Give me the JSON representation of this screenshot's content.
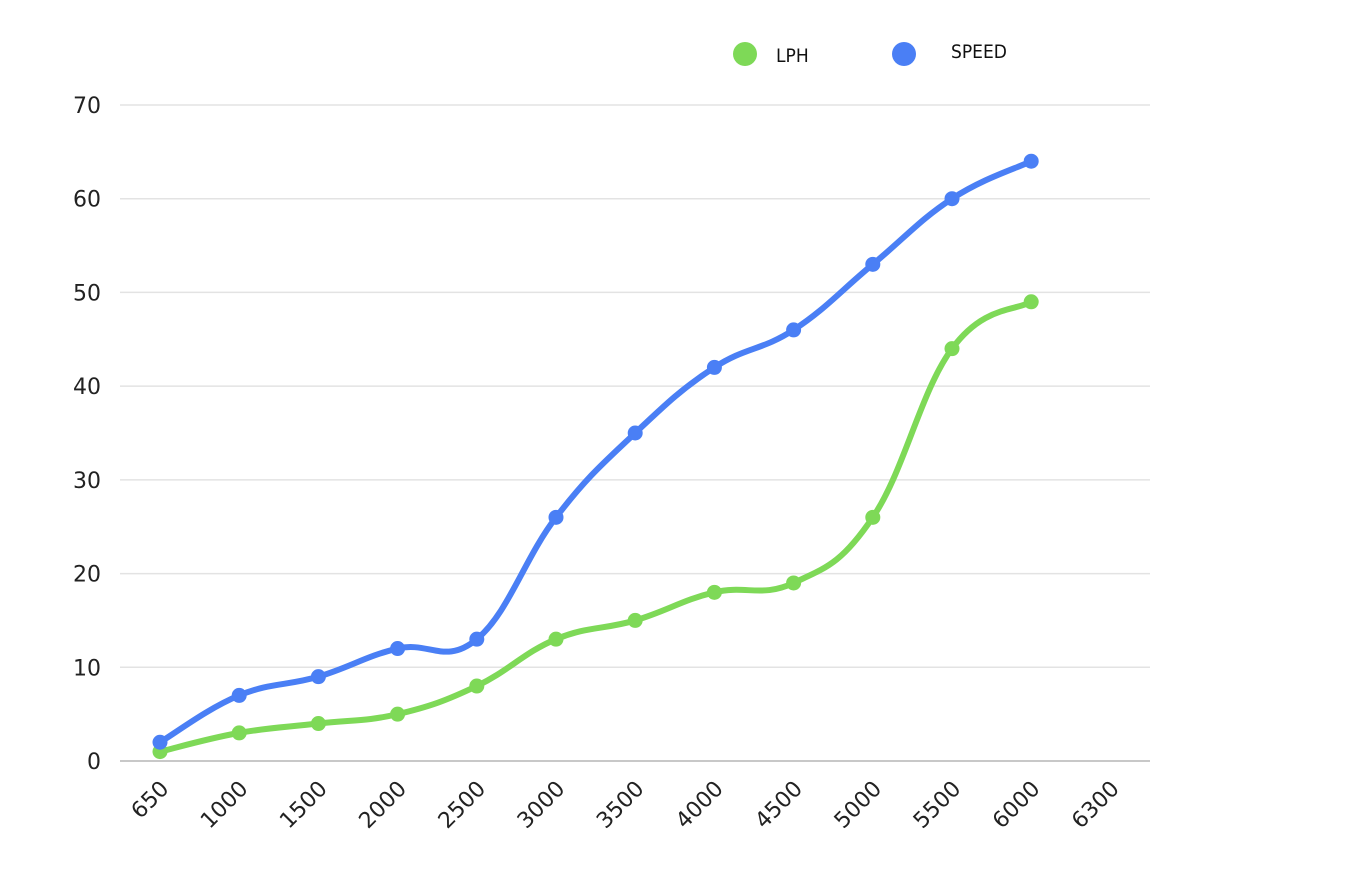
{
  "chart_data": {
    "type": "line",
    "categories": [
      "650",
      "1000",
      "1500",
      "2000",
      "2500",
      "3000",
      "3500",
      "4000",
      "4500",
      "5000",
      "5500",
      "6000",
      "6300"
    ],
    "series": [
      {
        "name": "LPH",
        "color": "#7ed957",
        "values": [
          1,
          3,
          4,
          5,
          8,
          13,
          15,
          18,
          19,
          26,
          44,
          49,
          null
        ]
      },
      {
        "name": "SPEED",
        "color": "#4a7ff5",
        "values": [
          2,
          7,
          9,
          12,
          13,
          26,
          35,
          42,
          46,
          53,
          60,
          64,
          null
        ]
      }
    ],
    "y_ticks": [
      "0",
      "10",
      "20",
      "30",
      "40",
      "50",
      "60",
      "70"
    ],
    "ylim": [
      0,
      70
    ],
    "grid": true,
    "legend_position": "top-right"
  }
}
